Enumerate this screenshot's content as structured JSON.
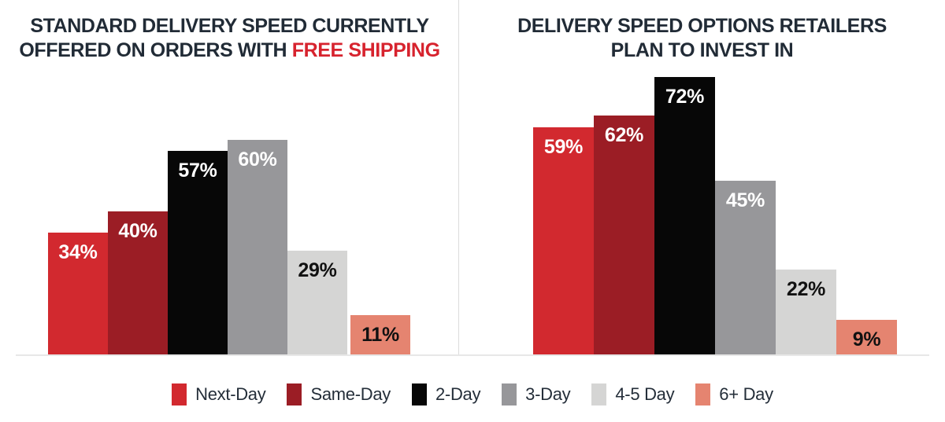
{
  "chart_data": [
    {
      "type": "bar",
      "title": "STANDARD DELIVERY SPEED CURRENTLY OFFERED ON ORDERS WITH FREE SHIPPING",
      "title_line1": "STANDARD DELIVERY SPEED CURRENTLY",
      "title_line2_prefix": "OFFERED ON ORDERS WITH ",
      "title_line2_highlight": "FREE SHIPPING",
      "title_highlight_color": "#d7232e",
      "categories": [
        "Next-Day",
        "Same-Day",
        "2-Day",
        "3-Day",
        "4-5 Day",
        "6+ Day"
      ],
      "values": [
        34,
        40,
        57,
        60,
        29,
        11
      ],
      "value_labels": [
        "34%",
        "40%",
        "57%",
        "60%",
        "29%",
        "11%"
      ],
      "unit": "%",
      "ylim": [
        0,
        100
      ],
      "grid": false,
      "axis_ticks_shown": false,
      "value_labels_shown": true,
      "legend_position": "bottom-shared"
    },
    {
      "type": "bar",
      "title": "DELIVERY SPEED OPTIONS RETAILERS PLAN TO INVEST IN",
      "title_line1": "DELIVERY SPEED OPTIONS RETAILERS",
      "title_line2_prefix": "PLAN TO INVEST IN",
      "title_line2_highlight": "",
      "categories": [
        "Next-Day",
        "Same-Day",
        "2-Day",
        "3-Day",
        "4-5 Day",
        "6+ Day"
      ],
      "values": [
        59,
        62,
        72,
        45,
        22,
        9
      ],
      "value_labels": [
        "59%",
        "62%",
        "72%",
        "45%",
        "22%",
        "9%"
      ],
      "unit": "%",
      "ylim": [
        0,
        100
      ],
      "grid": false,
      "axis_ticks_shown": false,
      "value_labels_shown": true,
      "legend_position": "bottom-shared"
    }
  ],
  "series_colors": [
    "#d2292f",
    "#9b1d25",
    "#070707",
    "#97979a",
    "#d5d5d4",
    "#e58470"
  ],
  "value_label_colors": [
    "#ffffff",
    "#ffffff",
    "#ffffff",
    "#ffffff",
    "#111111",
    "#111111"
  ],
  "legend": {
    "items": [
      {
        "label": "Next-Day",
        "color": "#d2292f"
      },
      {
        "label": "Same-Day",
        "color": "#9b1d25"
      },
      {
        "label": "2-Day",
        "color": "#070707"
      },
      {
        "label": "3-Day",
        "color": "#97979a"
      },
      {
        "label": "4-5 Day",
        "color": "#d5d5d4"
      },
      {
        "label": "6+ Day",
        "color": "#e58470"
      }
    ],
    "text_color": "#242e39"
  },
  "colors": {
    "title_text": "#212b36",
    "highlight_red": "#d7232e",
    "divider": "#dcdcdc",
    "baseline": "#e7e7e7",
    "background": "#ffffff"
  }
}
